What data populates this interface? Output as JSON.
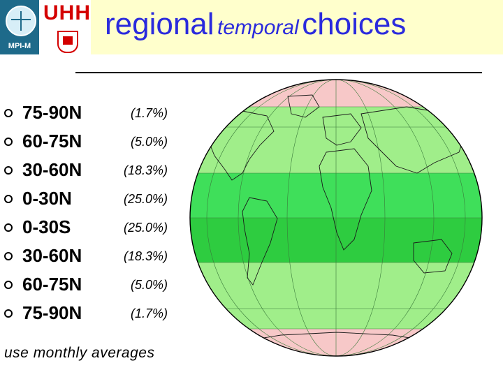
{
  "header": {
    "logo_left_text": "MPI-M",
    "logo_right_text": "UHH",
    "title_part1": "regional",
    "title_part2": "temporal",
    "title_part3": "choices"
  },
  "list": [
    {
      "band": "75-90N",
      "pct": "(1.7%)"
    },
    {
      "band": "60-75N",
      "pct": "(5.0%)"
    },
    {
      "band": "30-60N",
      "pct": "(18.3%)"
    },
    {
      "band": "0-30N",
      "pct": "(25.0%)"
    },
    {
      "band": "0-30S",
      "pct": "(25.0%)"
    },
    {
      "band": "30-60N",
      "pct": "(18.3%)"
    },
    {
      "band": "60-75N",
      "pct": "(5.0%)"
    },
    {
      "band": "75-90N",
      "pct": "(1.7%)"
    }
  ],
  "footer": "use monthly averages",
  "colors": {
    "title": "#2a2add",
    "header_bg": "#ffffcc",
    "polar_band": "#f7c8c8",
    "mid_band": "#a0ee8a",
    "tropic_band": "#3fdf5a",
    "equator_band": "#2ecc40"
  }
}
